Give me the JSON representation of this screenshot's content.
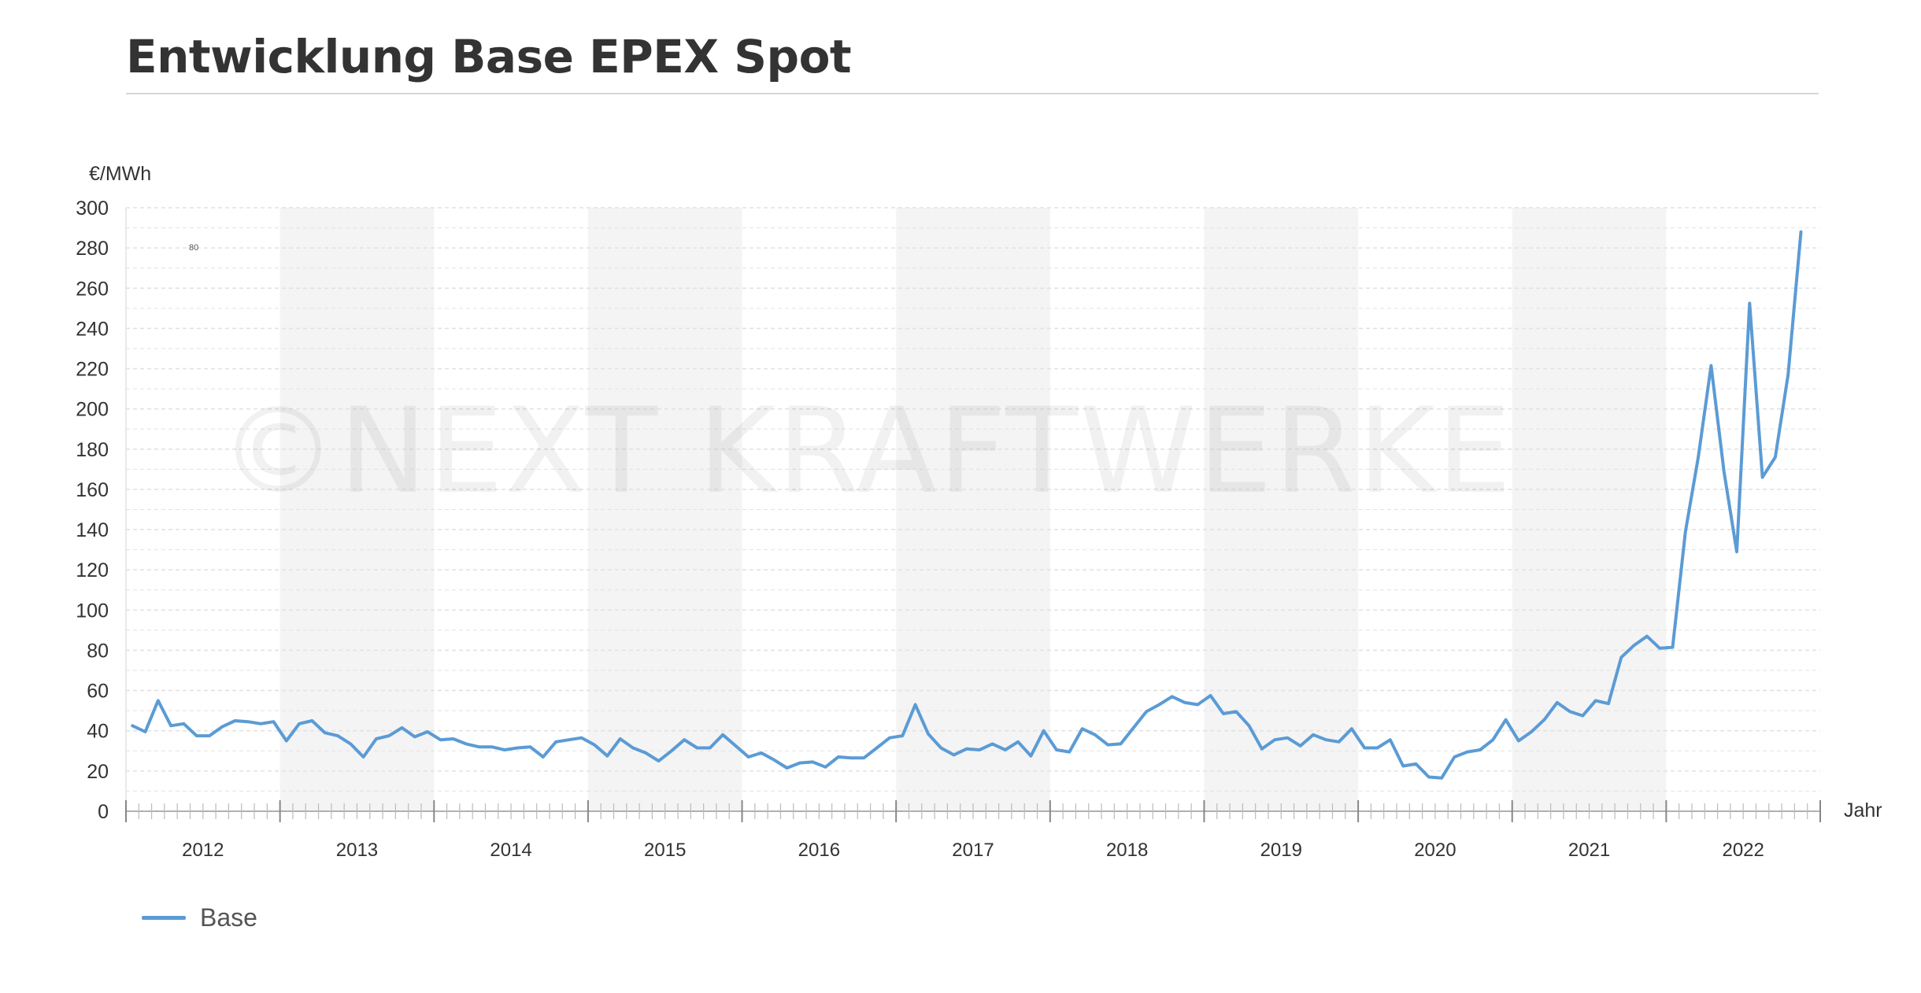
{
  "title": "Entwicklung Base EPEX Spot",
  "watermark": "©NEXT KRAFTWERKE",
  "colors": {
    "series": "#5b9bd5",
    "band": "#f4f4f4",
    "grid": "#e2e2e2",
    "axis": "#9a9a9a"
  },
  "chart_data": {
    "type": "line",
    "ylabel": "€/MWh",
    "xlabel": "Jahr",
    "ylim": [
      0,
      300
    ],
    "yticks": [
      0,
      20,
      40,
      60,
      80,
      100,
      120,
      140,
      160,
      180,
      200,
      220,
      240,
      260,
      280,
      300
    ],
    "years": [
      "2012",
      "2013",
      "2014",
      "2015",
      "2016",
      "2017",
      "2018",
      "2019",
      "2020",
      "2021",
      "2022"
    ],
    "shaded_years": [
      "2013",
      "2015",
      "2017",
      "2019",
      "2021"
    ],
    "stray_label": "80",
    "grid": true,
    "legend_position": "bottom-left",
    "series": [
      {
        "name": "Base",
        "values": [
          42.5,
          39.5,
          55.0,
          42.5,
          43.5,
          37.5,
          37.5,
          42.0,
          45.0,
          44.5,
          43.5,
          44.5,
          35.0,
          43.5,
          45.0,
          39.0,
          37.5,
          33.5,
          27.0,
          36.0,
          37.5,
          41.5,
          37.0,
          39.5,
          35.5,
          36.0,
          33.5,
          32.0,
          32.0,
          30.5,
          31.5,
          32.0,
          27.0,
          34.5,
          35.5,
          36.5,
          33.0,
          27.5,
          36.0,
          31.5,
          29.0,
          25.0,
          30.0,
          35.5,
          31.5,
          31.5,
          38.0,
          32.5,
          27.0,
          29.0,
          25.5,
          21.5,
          24.0,
          24.5,
          22.0,
          27.0,
          26.5,
          26.5,
          31.5,
          36.5,
          37.5,
          53.0,
          38.5,
          31.5,
          28.0,
          31.0,
          30.5,
          33.5,
          30.5,
          34.5,
          27.5,
          40.0,
          30.5,
          29.5,
          41.0,
          38.0,
          33.0,
          33.5,
          41.5,
          49.5,
          53.0,
          57.0,
          54.0,
          53.0,
          57.5,
          48.5,
          49.5,
          42.5,
          31.0,
          35.5,
          36.5,
          32.5,
          38.0,
          35.5,
          34.5,
          41.0,
          31.5,
          31.5,
          35.5,
          22.5,
          23.5,
          17.0,
          16.5,
          27.0,
          29.5,
          30.5,
          35.5,
          45.5,
          35.0,
          39.5,
          45.5,
          54.0,
          49.5,
          47.5,
          55.0,
          53.5,
          76.5,
          82.5,
          87.0,
          81.0,
          81.5,
          139.0,
          176.0,
          221.5,
          169.0,
          129.0,
          252.5,
          166.0,
          176.0,
          217.0,
          288.0
        ]
      }
    ]
  },
  "legend": {
    "label": "Base"
  }
}
